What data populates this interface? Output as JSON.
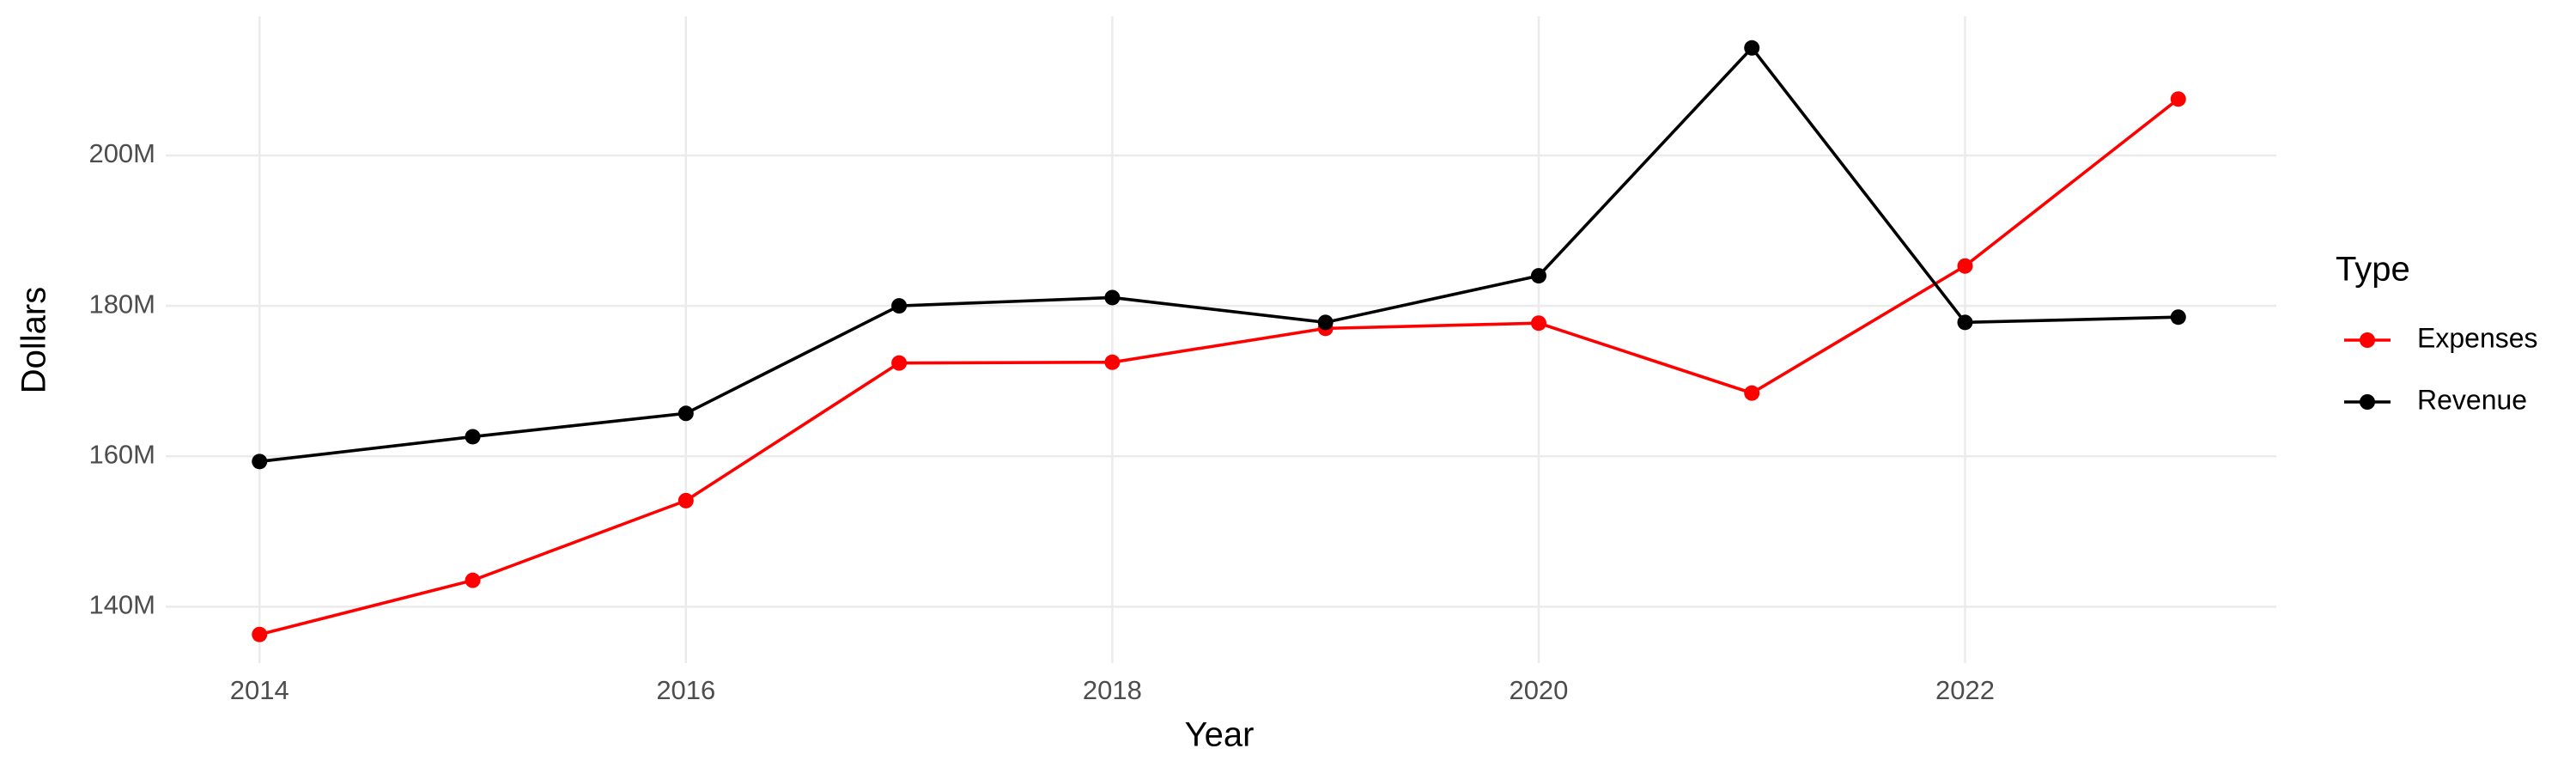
{
  "chart_data": {
    "type": "line",
    "x_label": "Year",
    "y_label": "Dollars",
    "legend_title": "Type",
    "x": [
      2014,
      2015,
      2016,
      2017,
      2018,
      2019,
      2020,
      2021,
      2022,
      2023
    ],
    "series": [
      {
        "name": "Expenses",
        "color": "#ff0000",
        "values": [
          136300000,
          143500000,
          154100000,
          172400000,
          172500000,
          177000000,
          177700000,
          168400000,
          185300000,
          207500000
        ]
      },
      {
        "name": "Revenue",
        "color": "#000000",
        "values": [
          159300000,
          162600000,
          165700000,
          180000000,
          181100000,
          177800000,
          184000000,
          214300000,
          177800000,
          178500000
        ]
      }
    ],
    "xlim": [
      2013.56,
      2023.46
    ],
    "ylim": [
      132500000,
      218500000
    ],
    "xticks": [
      2014,
      2016,
      2018,
      2020,
      2022
    ],
    "yticks": [
      {
        "value": 140000000,
        "label": "140M"
      },
      {
        "value": 160000000,
        "label": "160M"
      },
      {
        "value": 180000000,
        "label": "180M"
      },
      {
        "value": 200000000,
        "label": "200M"
      }
    ],
    "grid": true,
    "legend_position": "right"
  }
}
